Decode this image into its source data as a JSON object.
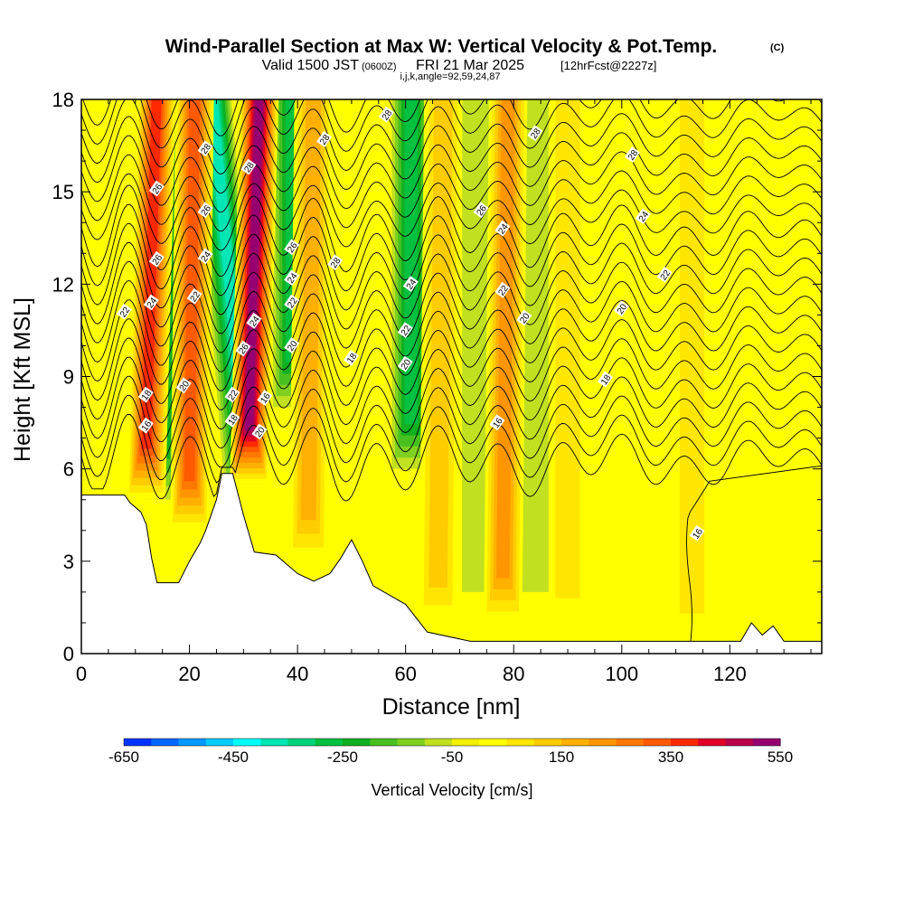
{
  "title": {
    "main": "Wind-Parallel Section at Max W: Vertical Velocity & Pot.Temp.",
    "copyright": "(C)",
    "valid": "Valid 1500 JST",
    "zulu": "(0600Z)",
    "date": "FRI 21 Mar 2025",
    "forecast": "[12hrFcst@2227z]",
    "indices": "i,j,k,angle=92,59,24,87"
  },
  "chart_data": {
    "type": "contour",
    "xlabel": "Distance [nm]",
    "ylabel": "Height [Kft MSL]",
    "xlim": [
      0,
      137
    ],
    "ylim": [
      0,
      18
    ],
    "x_ticks": [
      0,
      20,
      40,
      60,
      80,
      100,
      120
    ],
    "y_ticks": [
      0,
      3,
      6,
      9,
      12,
      15,
      18
    ],
    "colorbar": {
      "label": "Vertical Velocity [cm/s]",
      "tick_labels": [
        "-650",
        "-450",
        "-250",
        "-50",
        "150",
        "350",
        "550"
      ],
      "min": -650,
      "max": 550,
      "step": 50,
      "colors": [
        "#0000ff",
        "#0033ff",
        "#0066ff",
        "#0099ff",
        "#00ccff",
        "#00ffff",
        "#00e6b4",
        "#00d27a",
        "#00c040",
        "#10b020",
        "#48c020",
        "#80d020",
        "#c0e020",
        "#f0f000",
        "#ffff00",
        "#ffe600",
        "#ffcc00",
        "#ffb000",
        "#ff9600",
        "#ff7800",
        "#ff5a00",
        "#ff2800",
        "#e00028",
        "#b8004a",
        "#960070",
        "#700090"
      ]
    },
    "terrain_kft": [
      [
        0,
        5.15
      ],
      [
        8,
        5.15
      ],
      [
        9,
        4.9
      ],
      [
        11,
        4.6
      ],
      [
        12,
        4.2
      ],
      [
        13,
        3.1
      ],
      [
        14,
        2.3
      ],
      [
        18,
        2.3
      ],
      [
        20,
        3.0
      ],
      [
        22,
        3.6
      ],
      [
        23,
        4.0
      ],
      [
        25,
        5.0
      ],
      [
        26,
        5.85
      ],
      [
        28,
        5.85
      ],
      [
        30,
        4.5
      ],
      [
        32,
        3.3
      ],
      [
        36,
        3.2
      ],
      [
        38,
        2.9
      ],
      [
        40,
        2.6
      ],
      [
        43,
        2.35
      ],
      [
        46,
        2.6
      ],
      [
        48,
        3.1
      ],
      [
        50,
        3.7
      ],
      [
        52,
        3.0
      ],
      [
        54,
        2.2
      ],
      [
        57,
        1.9
      ],
      [
        60,
        1.6
      ],
      [
        64,
        0.7
      ],
      [
        72,
        0.4
      ],
      [
        122,
        0.4
      ],
      [
        124,
        1.0
      ],
      [
        126,
        0.6
      ],
      [
        128,
        0.9
      ],
      [
        130,
        0.4
      ],
      [
        137,
        0.4
      ]
    ],
    "updraft_bands": [
      {
        "top_x": 14,
        "bottom_x": 12,
        "bottom_kft": 5.0,
        "w": 420
      },
      {
        "top_x": 21,
        "bottom_x": 20,
        "bottom_kft": 4.0,
        "w": 350
      },
      {
        "top_x": 33,
        "bottom_x": 31,
        "bottom_kft": 5.5,
        "w": 550
      },
      {
        "top_x": 43,
        "bottom_x": 42,
        "bottom_kft": 3.0,
        "w": 200
      },
      {
        "top_x": 67,
        "bottom_x": 66,
        "bottom_kft": 1.0,
        "w": 150
      },
      {
        "top_x": 79,
        "bottom_x": 78,
        "bottom_kft": 1.0,
        "w": 250
      },
      {
        "top_x": 90,
        "bottom_x": 90,
        "bottom_kft": 1.0,
        "w": 100
      },
      {
        "top_x": 108,
        "bottom_x": 108,
        "bottom_kft": 1.0,
        "w": 80
      },
      {
        "top_x": 113,
        "bottom_x": 113,
        "bottom_kft": 0.5,
        "w": 100
      }
    ],
    "downdraft_bands": [
      {
        "top_x": 17,
        "bottom_x": 15,
        "bottom_kft": 5.0,
        "w": -200
      },
      {
        "top_x": 24,
        "bottom_x": 30,
        "bottom_kft": 5.5,
        "w": -350
      },
      {
        "top_x": 39,
        "bottom_x": 39,
        "bottom_kft": 8.0,
        "w": -250
      },
      {
        "top_x": 61,
        "bottom_x": 61,
        "bottom_kft": 6.0,
        "w": -250
      },
      {
        "top_x": 74,
        "bottom_x": 74,
        "bottom_kft": 2.0,
        "w": -80
      },
      {
        "top_x": 85,
        "bottom_x": 85,
        "bottom_kft": 2.0,
        "w": -80
      }
    ],
    "isentrope_labels": [
      {
        "text": "28",
        "x": 56.5,
        "kft": 17.5
      },
      {
        "text": "28",
        "x": 45,
        "kft": 16.7
      },
      {
        "text": "28",
        "x": 84,
        "kft": 16.9
      },
      {
        "text": "28",
        "x": 102,
        "kft": 16.2
      },
      {
        "text": "28",
        "x": 47,
        "kft": 12.7
      },
      {
        "text": "26",
        "x": 74,
        "kft": 14.4
      },
      {
        "text": "24",
        "x": 78,
        "kft": 13.8
      },
      {
        "text": "24",
        "x": 104,
        "kft": 14.2
      },
      {
        "text": "22",
        "x": 108,
        "kft": 12.3
      },
      {
        "text": "22",
        "x": 78,
        "kft": 11.8
      },
      {
        "text": "20",
        "x": 82,
        "kft": 10.9
      },
      {
        "text": "20",
        "x": 100,
        "kft": 11.2
      },
      {
        "text": "18",
        "x": 97,
        "kft": 8.9
      },
      {
        "text": "16",
        "x": 77,
        "kft": 7.5
      },
      {
        "text": "16",
        "x": 114,
        "kft": 3.9
      },
      {
        "text": "18",
        "x": 50,
        "kft": 9.6
      },
      {
        "text": "24",
        "x": 61,
        "kft": 12.0
      },
      {
        "text": "22",
        "x": 60,
        "kft": 10.5
      },
      {
        "text": "20",
        "x": 60,
        "kft": 9.4
      },
      {
        "text": "26",
        "x": 14,
        "kft": 15.1
      },
      {
        "text": "26",
        "x": 14,
        "kft": 12.8
      },
      {
        "text": "24",
        "x": 13,
        "kft": 11.4
      },
      {
        "text": "22",
        "x": 8,
        "kft": 11.1
      },
      {
        "text": "18",
        "x": 12,
        "kft": 8.4
      },
      {
        "text": "16",
        "x": 12,
        "kft": 7.4
      },
      {
        "text": "28",
        "x": 23,
        "kft": 16.4
      },
      {
        "text": "26",
        "x": 23,
        "kft": 14.4
      },
      {
        "text": "24",
        "x": 23,
        "kft": 12.9
      },
      {
        "text": "22",
        "x": 21,
        "kft": 11.6
      },
      {
        "text": "20",
        "x": 19,
        "kft": 8.7
      },
      {
        "text": "28",
        "x": 31,
        "kft": 15.8
      },
      {
        "text": "24",
        "x": 32,
        "kft": 10.8
      },
      {
        "text": "26",
        "x": 30,
        "kft": 9.9
      },
      {
        "text": "22",
        "x": 28,
        "kft": 8.4
      },
      {
        "text": "18",
        "x": 28,
        "kft": 7.6
      },
      {
        "text": "16",
        "x": 34,
        "kft": 8.3
      },
      {
        "text": "20",
        "x": 33,
        "kft": 7.2
      },
      {
        "text": "26",
        "x": 39,
        "kft": 13.2
      },
      {
        "text": "24",
        "x": 39,
        "kft": 12.2
      },
      {
        "text": "22",
        "x": 39,
        "kft": 11.4
      },
      {
        "text": "20",
        "x": 39,
        "kft": 10.0
      }
    ]
  }
}
